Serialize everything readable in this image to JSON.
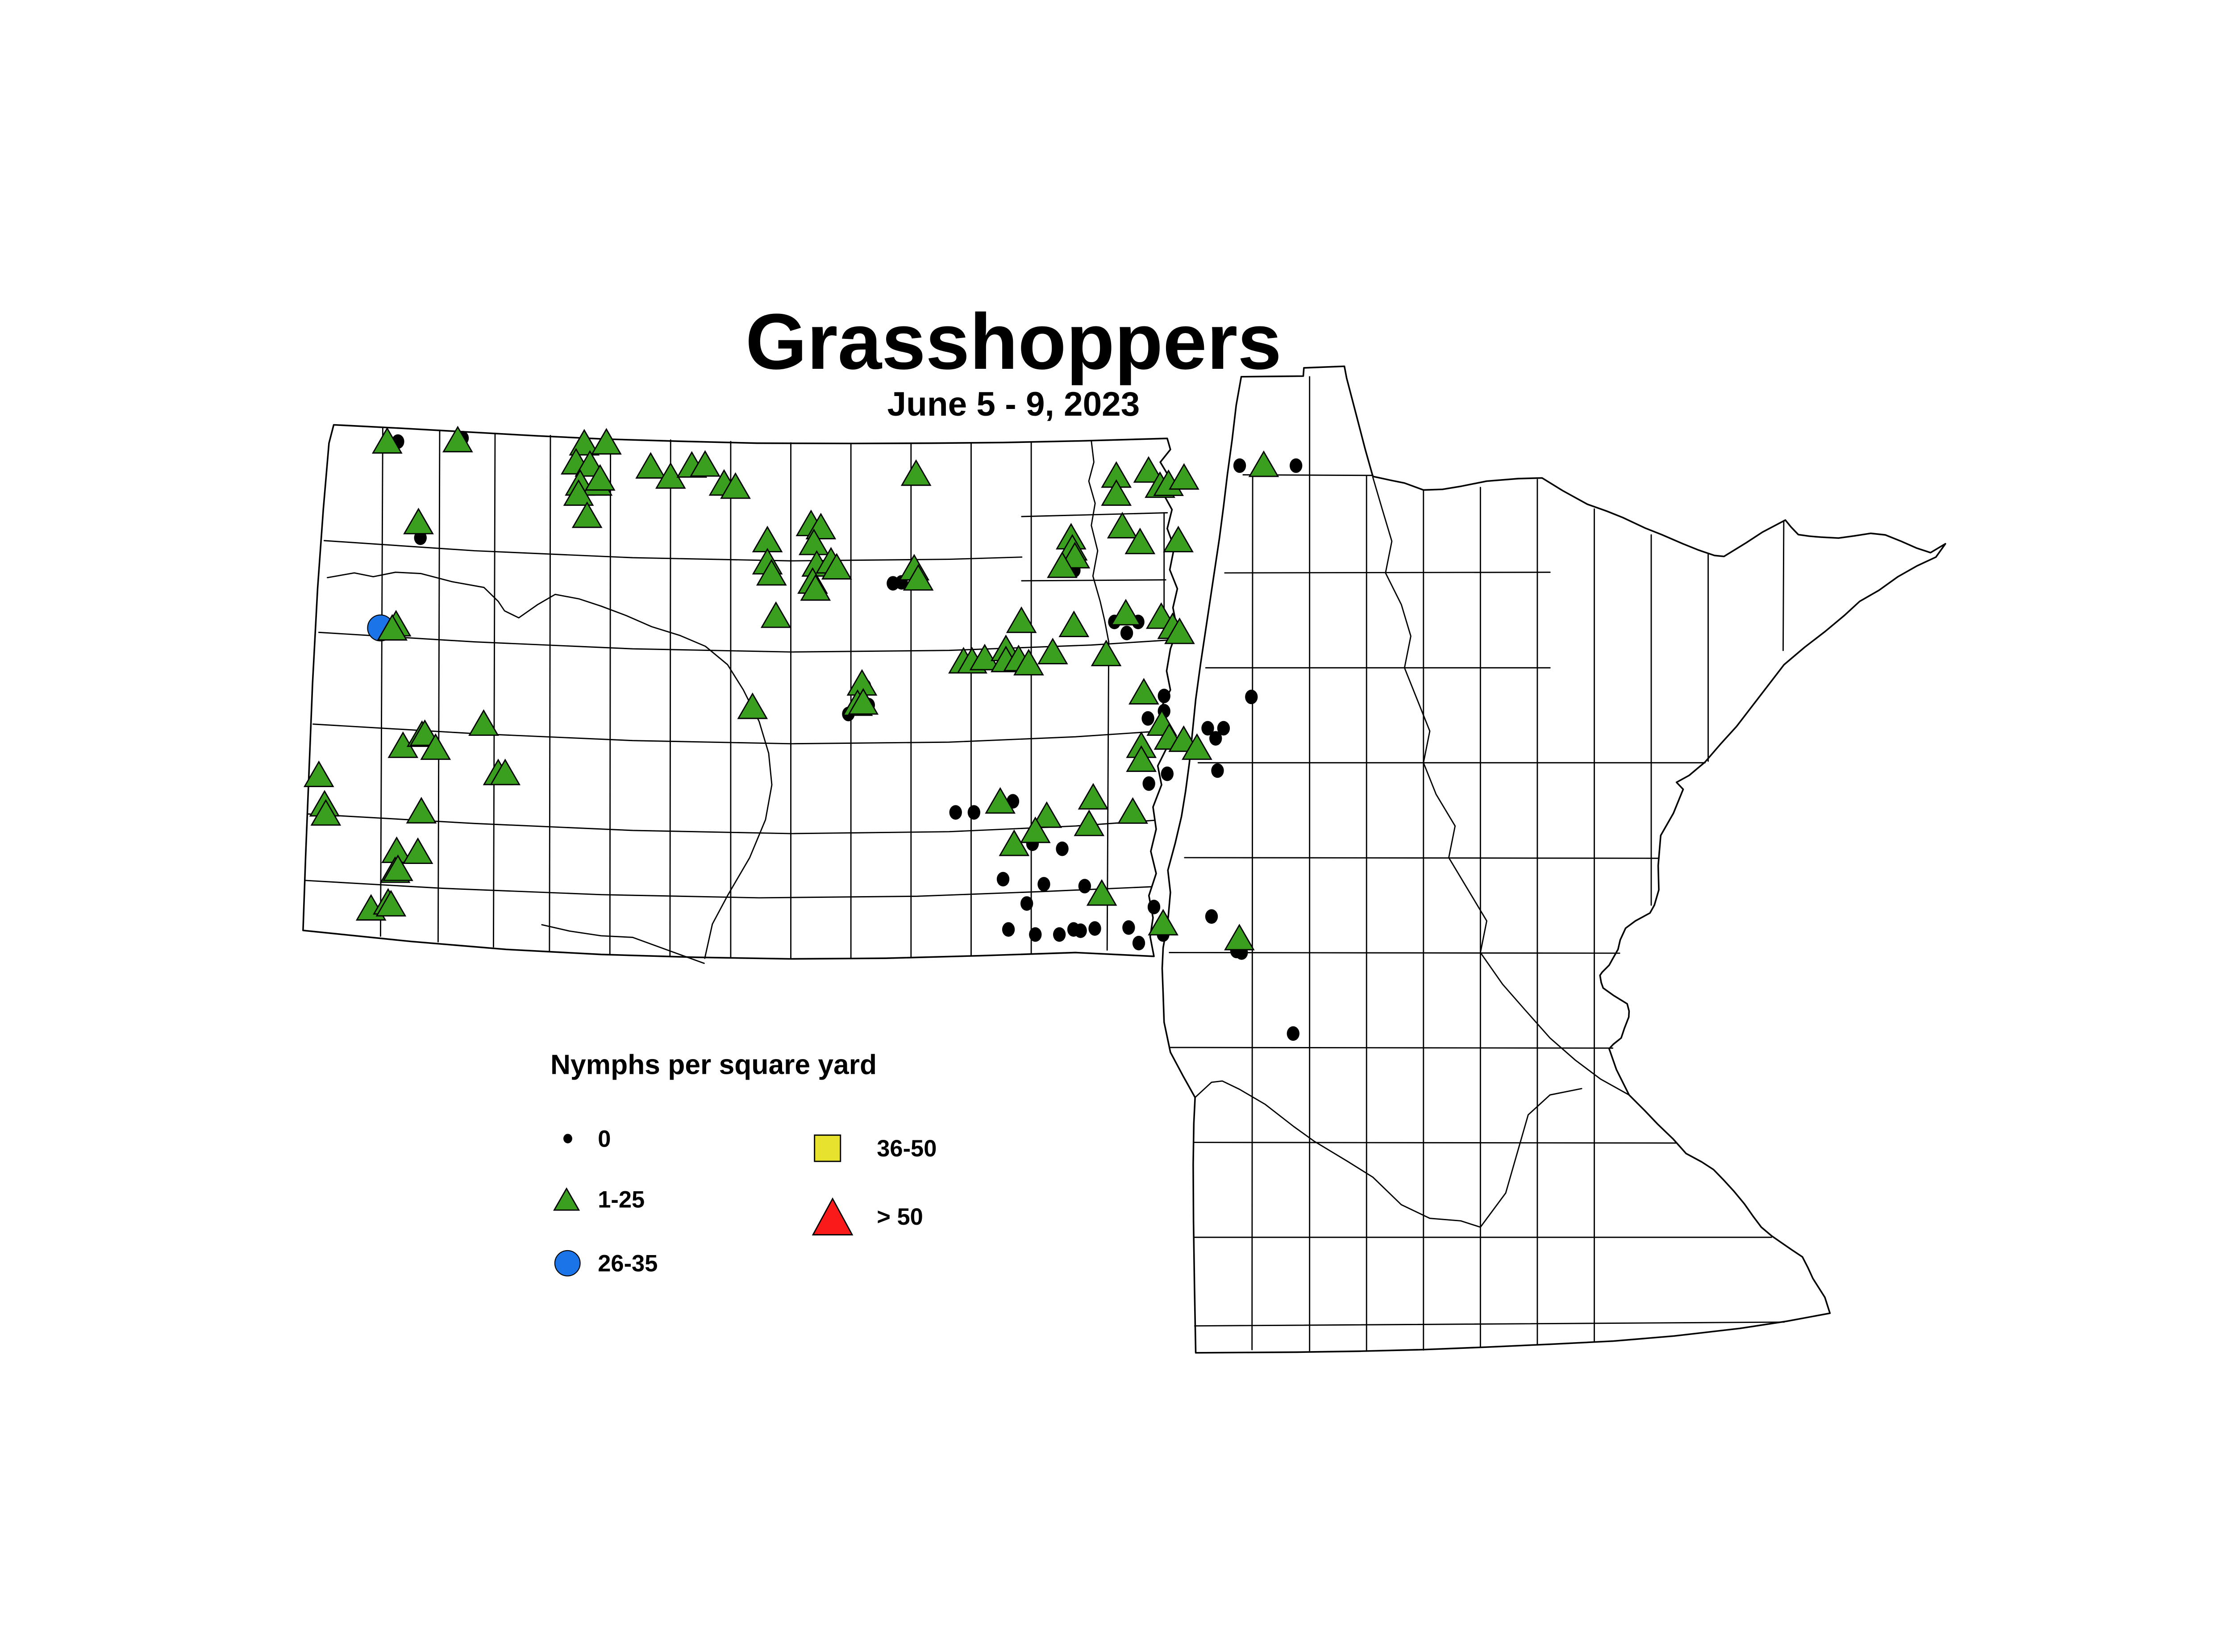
{
  "title": {
    "text": "Grasshoppers",
    "subtitle": "June 5 - 9, 2023"
  },
  "legend": {
    "header": "Nymphs per square yard",
    "items": [
      {
        "id": "zero",
        "label": "0",
        "shape": "dot",
        "color": "#000000"
      },
      {
        "id": "t1_25",
        "label": "1-25",
        "shape": "triangle",
        "color": "#3A9E1E"
      },
      {
        "id": "b26_35",
        "label": "26-35",
        "shape": "circle",
        "color": "#1B74E8"
      },
      {
        "id": "y36_50",
        "label": "36-50",
        "shape": "square",
        "color": "#E6E22E"
      },
      {
        "id": "r50",
        "label": "> 50",
        "shape": "triangle",
        "color": "#FB1A1A"
      }
    ]
  },
  "colors": {
    "outline": "#000000",
    "background": "#ffffff"
  },
  "chart_data": {
    "type": "scatter",
    "title": "Grasshoppers",
    "subtitle": "June 5 - 9, 2023",
    "legend_title": "Nymphs per square yard",
    "legend_position": "bottom-left",
    "units": "nymphs per square yard",
    "region": "North Dakota and Minnesota counties",
    "series": [
      {
        "name": "0",
        "marker": "black-dot",
        "count": 48,
        "points": [
          [
            1258,
            635
          ],
          [
            1462,
            624
          ],
          [
            1329,
            939
          ],
          [
            2823,
            1083
          ],
          [
            2850,
            1080
          ],
          [
            3396,
            1042
          ],
          [
            3523,
            1205
          ],
          [
            3598,
            1205
          ],
          [
            3562,
            1240
          ],
          [
            3919,
            711
          ],
          [
            4097,
            711
          ],
          [
            3697,
            772
          ],
          [
            2734,
            1408
          ],
          [
            2746,
            1468
          ],
          [
            2682,
            1496
          ],
          [
            3021,
            1807
          ],
          [
            3079,
            1807
          ],
          [
            3202,
            1772
          ],
          [
            3264,
            1906
          ],
          [
            3358,
            1922
          ],
          [
            3171,
            2018
          ],
          [
            3300,
            2034
          ],
          [
            3429,
            2040
          ],
          [
            3246,
            2095
          ],
          [
            3188,
            2177
          ],
          [
            3273,
            2193
          ],
          [
            3349,
            2193
          ],
          [
            3394,
            2177
          ],
          [
            3416,
            2181
          ],
          [
            3461,
            2174
          ],
          [
            3568,
            2171
          ],
          [
            3600,
            2220
          ],
          [
            3648,
            2106
          ],
          [
            3677,
            2193
          ],
          [
            3830,
            2136
          ],
          [
            3909,
            2245
          ],
          [
            3925,
            2250
          ],
          [
            3632,
            1716
          ],
          [
            3690,
            1685
          ],
          [
            3629,
            1510
          ],
          [
            3680,
            1439
          ],
          [
            3680,
            1487
          ],
          [
            3849,
            1675
          ],
          [
            3818,
            1541
          ],
          [
            3868,
            1541
          ],
          [
            3843,
            1573
          ],
          [
            3956,
            1442
          ],
          [
            4088,
            2506
          ]
        ]
      },
      {
        "name": "1-25",
        "marker": "green-triangle",
        "count": 103,
        "points": [
          [
            1224,
            637
          ],
          [
            1447,
            633
          ],
          [
            1847,
            643
          ],
          [
            1917,
            640
          ],
          [
            1821,
            703
          ],
          [
            1865,
            710
          ],
          [
            1834,
            770
          ],
          [
            1888,
            770
          ],
          [
            1897,
            754
          ],
          [
            1829,
            802
          ],
          [
            1856,
            872
          ],
          [
            2057,
            716
          ],
          [
            2120,
            748
          ],
          [
            2187,
            713
          ],
          [
            2229,
            710
          ],
          [
            2289,
            770
          ],
          [
            2325,
            780
          ],
          [
            1323,
            892
          ],
          [
            1252,
            1215
          ],
          [
            1240,
            1228
          ],
          [
            2896,
            739
          ],
          [
            3529,
            745
          ],
          [
            3631,
            729
          ],
          [
            3667,
            777
          ],
          [
            3694,
            771
          ],
          [
            3529,
            802
          ],
          [
            3743,
            751
          ],
          [
            3995,
            711
          ],
          [
            3548,
            905
          ],
          [
            3604,
            955
          ],
          [
            3725,
            949
          ],
          [
            2564,
            898
          ],
          [
            2595,
            908
          ],
          [
            2426,
            949
          ],
          [
            2573,
            958
          ],
          [
            2426,
            1019
          ],
          [
            2439,
            1054
          ],
          [
            2582,
            1026
          ],
          [
            2627,
            1016
          ],
          [
            2645,
            1035
          ],
          [
            2569,
            1080
          ],
          [
            2578,
            1102
          ],
          [
            2453,
            1188
          ],
          [
            2890,
            1038
          ],
          [
            2903,
            1070
          ],
          [
            3386,
            940
          ],
          [
            3390,
            975
          ],
          [
            3398,
            1000
          ],
          [
            3358,
            1030
          ],
          [
            3229,
            1204
          ],
          [
            3395,
            1217
          ],
          [
            3559,
            1180
          ],
          [
            3671,
            1191
          ],
          [
            3707,
            1223
          ],
          [
            3729,
            1239
          ],
          [
            3616,
            1430
          ],
          [
            3673,
            1529
          ],
          [
            3696,
            1573
          ],
          [
            3742,
            1580
          ],
          [
            3784,
            1605
          ],
          [
            3608,
            1599
          ],
          [
            3608,
            1643
          ],
          [
            3046,
            1332
          ],
          [
            3073,
            1332
          ],
          [
            3113,
            1322
          ],
          [
            3180,
            1293
          ],
          [
            3180,
            1328
          ],
          [
            3220,
            1325
          ],
          [
            3252,
            1338
          ],
          [
            3328,
            1303
          ],
          [
            3497,
            1309
          ],
          [
            2379,
            1476
          ],
          [
            2725,
            1402
          ],
          [
            2711,
            1466
          ],
          [
            2729,
            1462
          ],
          [
            3162,
            1775
          ],
          [
            3309,
            1820
          ],
          [
            3273,
            1868
          ],
          [
            3456,
            1762
          ],
          [
            3443,
            1846
          ],
          [
            3581,
            1807
          ],
          [
            3206,
            1909
          ],
          [
            3483,
            2066
          ],
          [
            3677,
            2160
          ],
          [
            3918,
            2207
          ],
          [
            1529,
            1529
          ],
          [
            1274,
            1599
          ],
          [
            1334,
            1564
          ],
          [
            1343,
            1561
          ],
          [
            1377,
            1605
          ],
          [
            1008,
            1691
          ],
          [
            1026,
            1784
          ],
          [
            1030,
            1813
          ],
          [
            1332,
            1806
          ],
          [
            1575,
            1685
          ],
          [
            1597,
            1685
          ],
          [
            1254,
            1931
          ],
          [
            1321,
            1934
          ],
          [
            1249,
            1994
          ],
          [
            1258,
            1988
          ],
          [
            1173,
            2113
          ],
          [
            1227,
            2094
          ],
          [
            1236,
            2100
          ]
        ]
      },
      {
        "name": "26-35",
        "marker": "blue-circle",
        "count": 1,
        "points": [
          [
            1203,
            1224
          ]
        ]
      },
      {
        "name": "36-50",
        "marker": "yellow-square",
        "count": 0,
        "points": []
      },
      {
        "name": "> 50",
        "marker": "red-triangle",
        "count": 0,
        "points": []
      }
    ]
  }
}
